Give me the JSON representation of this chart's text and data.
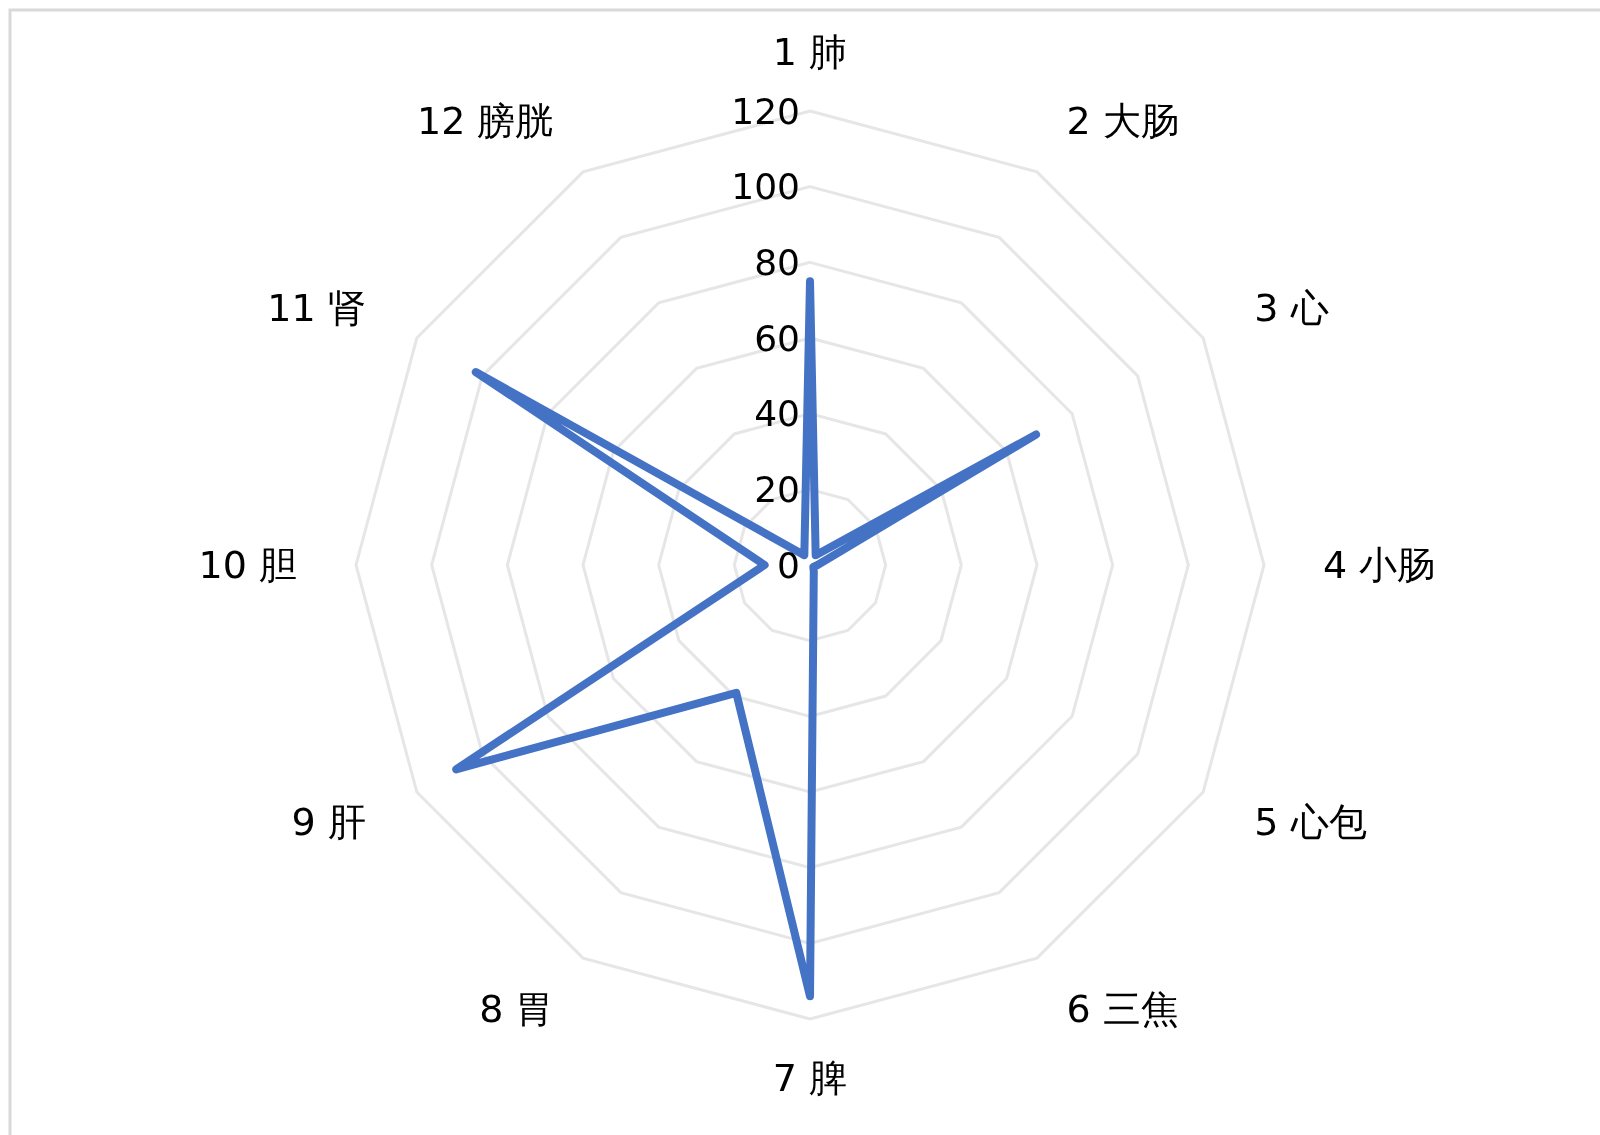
{
  "chart_data": {
    "type": "radar",
    "categories": [
      "1 肺",
      "2 大肠",
      "3 心",
      "4 小肠",
      "5 心包",
      "6 三焦",
      "7 脾",
      "8 胃",
      "9 肝",
      "10 胆",
      "11 肾",
      "12 膀胱"
    ],
    "series": [
      {
        "color": "#4472c4",
        "values": [
          75,
          3,
          69,
          2,
          1,
          2,
          114,
          39,
          108,
          12,
          102,
          3
        ]
      }
    ],
    "ylim": [
      0,
      120
    ],
    "yticks": [
      0,
      20,
      40,
      60,
      80,
      100,
      120
    ],
    "grid": true,
    "marker": "none"
  }
}
